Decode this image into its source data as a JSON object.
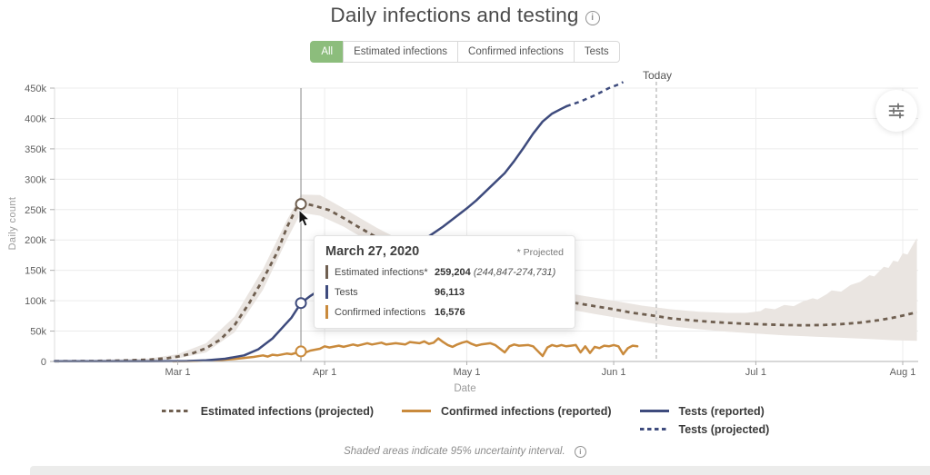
{
  "title": {
    "text": "Daily infections and testing",
    "info_icon": "info-icon"
  },
  "tabs": [
    {
      "label": "All",
      "active": true
    },
    {
      "label": "Estimated infections",
      "active": false
    },
    {
      "label": "Confirmed infections",
      "active": false
    },
    {
      "label": "Tests",
      "active": false
    }
  ],
  "today": {
    "label": "Today",
    "day": 127
  },
  "controls": {
    "chart_settings_icon": "sliders-icon"
  },
  "tooltip": {
    "date": "March 27, 2020",
    "projected_note": "* Projected",
    "rows": [
      {
        "label": "Estimated infections*",
        "value": "259,204",
        "range": "(244,847-274,731)",
        "color": "#6F5F50"
      },
      {
        "label": "Tests",
        "value": "96,113",
        "range": "",
        "color": "#3E4B7D"
      },
      {
        "label": "Confirmed infections",
        "value": "16,576",
        "range": "",
        "color": "#C98A3C"
      }
    ]
  },
  "legend": {
    "items": [
      {
        "label": "Estimated infections (projected)",
        "style": "dashed",
        "color": "#6F5F50"
      },
      {
        "label": "Confirmed infections (reported)",
        "style": "solid",
        "color": "#C98A3C"
      },
      {
        "label": "Tests (reported)",
        "style": "solid",
        "color": "#3E4B7D"
      },
      {
        "label": "Tests (projected)",
        "style": "dashed",
        "color": "#3E4B7D"
      }
    ]
  },
  "footnote": "Shaded areas indicate 95% uncertainty interval.",
  "chart_data": {
    "type": "line",
    "title": "Daily infections and testing",
    "xlabel": "Date",
    "ylabel": "Daily count",
    "x_unit": "days since Feb 3, 2020",
    "values_unit": "people per day (thousands)",
    "ylim": [
      0,
      450
    ],
    "grid": true,
    "x_ticks": [
      {
        "label": "Mar 1",
        "day": 26
      },
      {
        "label": "Apr 1",
        "day": 57
      },
      {
        "label": "May 1",
        "day": 87
      },
      {
        "label": "Jun 1",
        "day": 118
      },
      {
        "label": "Jul 1",
        "day": 148
      },
      {
        "label": "Aug 1",
        "day": 179
      }
    ],
    "y_ticks": [
      {
        "label": "0",
        "value": 0
      },
      {
        "label": "50k",
        "value": 50
      },
      {
        "label": "100k",
        "value": 100
      },
      {
        "label": "150k",
        "value": 150
      },
      {
        "label": "200k",
        "value": 200
      },
      {
        "label": "250k",
        "value": 250
      },
      {
        "label": "300k",
        "value": 300
      },
      {
        "label": "350k",
        "value": 350
      },
      {
        "label": "400k",
        "value": 400
      },
      {
        "label": "450k",
        "value": 450
      }
    ],
    "hover": {
      "day": 52,
      "date": "March 27, 2020",
      "points": [
        {
          "name": "estimated-infections",
          "value_k": 259.204,
          "color": "#6F5F50"
        },
        {
          "name": "tests",
          "value_k": 96.113,
          "color": "#3E4B7D"
        },
        {
          "name": "confirmed-infections",
          "value_k": 16.576,
          "color": "#C98A3C"
        }
      ]
    },
    "band": {
      "name": "95% uncertainty interval",
      "color": "#EAE5E1",
      "lower": [
        [
          0,
          0.1
        ],
        [
          20,
          1
        ],
        [
          26,
          5
        ],
        [
          32,
          15
        ],
        [
          38,
          48
        ],
        [
          44,
          118
        ],
        [
          49,
          200
        ],
        [
          52,
          244.8
        ],
        [
          56,
          240
        ],
        [
          61,
          222
        ],
        [
          68,
          190
        ],
        [
          76,
          158
        ],
        [
          84,
          134
        ],
        [
          91,
          117
        ],
        [
          99,
          100
        ],
        [
          107,
          88
        ],
        [
          114,
          78
        ],
        [
          118,
          73
        ],
        [
          124,
          65
        ],
        [
          130,
          58
        ],
        [
          136,
          53
        ],
        [
          142,
          49
        ],
        [
          148,
          46
        ],
        [
          154,
          43
        ],
        [
          160,
          41
        ],
        [
          166,
          39
        ],
        [
          172,
          37
        ],
        [
          177,
          35
        ],
        [
          182,
          34
        ]
      ],
      "upper": [
        [
          0,
          0.8
        ],
        [
          20,
          5
        ],
        [
          26,
          12
        ],
        [
          32,
          30
        ],
        [
          38,
          74
        ],
        [
          44,
          152
        ],
        [
          49,
          232
        ],
        [
          52,
          274.7
        ],
        [
          56,
          274
        ],
        [
          61,
          252
        ],
        [
          68,
          220
        ],
        [
          76,
          188
        ],
        [
          84,
          163
        ],
        [
          91,
          145
        ],
        [
          99,
          128
        ],
        [
          107,
          114
        ],
        [
          114,
          105
        ],
        [
          118,
          100
        ],
        [
          124,
          92
        ],
        [
          130,
          86
        ],
        [
          136,
          82
        ],
        [
          142,
          80
        ],
        [
          146,
          80
        ],
        [
          149,
          83
        ],
        [
          150,
          88
        ],
        [
          152,
          86
        ],
        [
          154,
          93
        ],
        [
          156,
          91
        ],
        [
          158,
          99
        ],
        [
          160,
          104
        ],
        [
          161,
          102
        ],
        [
          163,
          111
        ],
        [
          164,
          117
        ],
        [
          166,
          115
        ],
        [
          168,
          126
        ],
        [
          170,
          131
        ],
        [
          172,
          142
        ],
        [
          173,
          140
        ],
        [
          174,
          148
        ],
        [
          175,
          156
        ],
        [
          176,
          154
        ],
        [
          177,
          166
        ],
        [
          178,
          164
        ],
        [
          179,
          178
        ],
        [
          180,
          176
        ],
        [
          181,
          190
        ],
        [
          182,
          203
        ]
      ]
    },
    "series": [
      {
        "name": "Estimated infections (projected)",
        "style": "dashed",
        "color": "#6F5F50",
        "points": [
          [
            0,
            0.4
          ],
          [
            8,
            0.8
          ],
          [
            14,
            1.5
          ],
          [
            20,
            3
          ],
          [
            24,
            5.5
          ],
          [
            26,
            8
          ],
          [
            29,
            13
          ],
          [
            32,
            22
          ],
          [
            35,
            36
          ],
          [
            38,
            60
          ],
          [
            41,
            95
          ],
          [
            44,
            135
          ],
          [
            47,
            180
          ],
          [
            49,
            220
          ],
          [
            51,
            252
          ],
          [
            52,
            259.2
          ],
          [
            53,
            259.5
          ],
          [
            55,
            256
          ],
          [
            58,
            249
          ],
          [
            61,
            236
          ],
          [
            64,
            222
          ],
          [
            68,
            204
          ],
          [
            72,
            188
          ],
          [
            76,
            172
          ],
          [
            80,
            158
          ],
          [
            84,
            148
          ],
          [
            87,
            140
          ],
          [
            91,
            130
          ],
          [
            95,
            121
          ],
          [
            99,
            113
          ],
          [
            103,
            107
          ],
          [
            107,
            100
          ],
          [
            111,
            95
          ],
          [
            114,
            91
          ],
          [
            118,
            86
          ],
          [
            122,
            80
          ],
          [
            126,
            76
          ],
          [
            130,
            71
          ],
          [
            134,
            68
          ],
          [
            138,
            65.5
          ],
          [
            142,
            63.5
          ],
          [
            146,
            62
          ],
          [
            150,
            61
          ],
          [
            154,
            60
          ],
          [
            158,
            59.5
          ],
          [
            162,
            60
          ],
          [
            166,
            61.5
          ],
          [
            170,
            64
          ],
          [
            174,
            68
          ],
          [
            177,
            72
          ],
          [
            179,
            75.5
          ],
          [
            182,
            81
          ]
        ]
      },
      {
        "name": "Confirmed infections (reported)",
        "style": "solid",
        "color": "#C98A3C",
        "points": [
          [
            25,
            0.2
          ],
          [
            30,
            0.8
          ],
          [
            34,
            2
          ],
          [
            38,
            4
          ],
          [
            42,
            7.5
          ],
          [
            44,
            10
          ],
          [
            45,
            8
          ],
          [
            46,
            11
          ],
          [
            47,
            10
          ],
          [
            49,
            13
          ],
          [
            50,
            12
          ],
          [
            52,
            16.6
          ],
          [
            53,
            15
          ],
          [
            54,
            18
          ],
          [
            56,
            21
          ],
          [
            57,
            25
          ],
          [
            58,
            23
          ],
          [
            60,
            26
          ],
          [
            61,
            24
          ],
          [
            63,
            28
          ],
          [
            64,
            26
          ],
          [
            66,
            30
          ],
          [
            67,
            28
          ],
          [
            69,
            31
          ],
          [
            70,
            28
          ],
          [
            72,
            30
          ],
          [
            74,
            28
          ],
          [
            75,
            32
          ],
          [
            77,
            30
          ],
          [
            78,
            33
          ],
          [
            79,
            29
          ],
          [
            80,
            31
          ],
          [
            81,
            38
          ],
          [
            82,
            32
          ],
          [
            83,
            27
          ],
          [
            84,
            24
          ],
          [
            85,
            28
          ],
          [
            86,
            31
          ],
          [
            87,
            33
          ],
          [
            88,
            29
          ],
          [
            89,
            26
          ],
          [
            90,
            28
          ],
          [
            92,
            30
          ],
          [
            93,
            27
          ],
          [
            95,
            15
          ],
          [
            96,
            25
          ],
          [
            97,
            28
          ],
          [
            98,
            26
          ],
          [
            100,
            27
          ],
          [
            101,
            25
          ],
          [
            103,
            9
          ],
          [
            104,
            23
          ],
          [
            105,
            27
          ],
          [
            106,
            25
          ],
          [
            107,
            27
          ],
          [
            108,
            25
          ],
          [
            109,
            26
          ],
          [
            110,
            27
          ],
          [
            111,
            15
          ],
          [
            112,
            25
          ],
          [
            113,
            14
          ],
          [
            114,
            24
          ],
          [
            115,
            22
          ],
          [
            116,
            26
          ],
          [
            117,
            25
          ],
          [
            118,
            27
          ],
          [
            119,
            25
          ],
          [
            120,
            12
          ],
          [
            121,
            22
          ],
          [
            122,
            26
          ],
          [
            123,
            25
          ]
        ]
      },
      {
        "name": "Tests (reported)",
        "style": "solid",
        "color": "#3E4B7D",
        "points": [
          [
            0,
            0.3
          ],
          [
            20,
            0.4
          ],
          [
            28,
            0.8
          ],
          [
            32,
            2
          ],
          [
            36,
            4.5
          ],
          [
            40,
            10
          ],
          [
            43,
            20
          ],
          [
            46,
            38
          ],
          [
            48,
            55
          ],
          [
            50,
            72
          ],
          [
            52,
            96.1
          ],
          [
            54,
            108
          ],
          [
            56,
            118
          ],
          [
            58,
            126
          ],
          [
            61,
            136
          ],
          [
            64,
            145
          ],
          [
            67,
            154
          ],
          [
            70,
            166
          ],
          [
            73,
            178
          ],
          [
            76,
            192
          ],
          [
            79,
            206
          ],
          [
            82,
            222
          ],
          [
            85,
            240
          ],
          [
            87,
            252
          ],
          [
            89,
            265
          ],
          [
            91,
            280
          ],
          [
            93,
            295
          ],
          [
            95,
            310
          ],
          [
            97,
            330
          ],
          [
            99,
            352
          ],
          [
            101,
            375
          ],
          [
            103,
            395
          ],
          [
            105,
            408
          ],
          [
            107,
            416
          ],
          [
            108,
            420
          ]
        ]
      },
      {
        "name": "Tests (projected)",
        "style": "dashed",
        "color": "#3E4B7D",
        "points": [
          [
            108,
            420
          ],
          [
            111,
            428
          ],
          [
            114,
            438
          ],
          [
            117,
            450
          ],
          [
            119,
            456
          ],
          [
            120,
            460
          ]
        ]
      }
    ]
  }
}
